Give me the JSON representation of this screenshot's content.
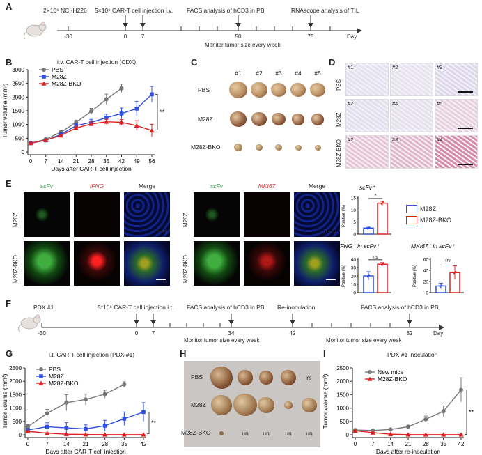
{
  "panels": {
    "A": {
      "letter": "A",
      "cells": "2×10⁶ NCI-H226",
      "injection": "5×10⁶ CAR-T cell injection i.v.",
      "facs": "FACS analysis of hCD3 in PB",
      "rnascope": "RNAscope analysis of TIL",
      "monitor": "Monitor tumor size every week",
      "ticks": [
        "-30",
        "0",
        "7",
        "50",
        "75"
      ],
      "day": "Day"
    },
    "B": {
      "letter": "B",
      "title": "i.v. CAR-T cell injection (CDX)",
      "significance": "**"
    },
    "C": {
      "letter": "C",
      "cols": [
        "#1",
        "#2",
        "#3",
        "#4",
        "#5"
      ],
      "rows": [
        "PBS",
        "M28Z",
        "M28Z-BKO"
      ]
    },
    "D": {
      "letter": "D",
      "rows": [
        "PBS",
        "M28Z",
        "M28Z-BKO"
      ],
      "tiles": [
        [
          "#1",
          "#2",
          "#3"
        ],
        [
          "#2",
          "#4",
          "#5"
        ],
        [
          "#2",
          "#3",
          "#4"
        ]
      ]
    },
    "E": {
      "letter": "E",
      "left_headers": [
        "scFv",
        "IFNG",
        "Merge"
      ],
      "right_headers": [
        "scFv",
        "MKI67",
        "Merge"
      ],
      "rows": [
        "M28Z",
        "M28Z-BKO"
      ],
      "legend": [
        "M28Z",
        "M28Z-BKO"
      ]
    },
    "F": {
      "letter": "F",
      "pdx": "PDX #1",
      "injection": "5*10⁶ CAR-T cell injection i.t.",
      "facs1": "FACS analysis of hCD3 in PB",
      "reinoc": "Re-inoculation",
      "facs2": "FACS analysis of hCD3 in PB",
      "monitor1": "Monitor tumor size every week",
      "monitor2": "Monitor tumor size every week",
      "ticks": [
        "-30",
        "0",
        "7",
        "34",
        "42",
        "82"
      ],
      "day": "Day"
    },
    "G": {
      "letter": "G",
      "title": "i.t. CAR-T cell injection (PDX #1)",
      "significance": "**"
    },
    "H": {
      "letter": "H",
      "rows": [
        "PBS",
        "M28Z",
        "M28Z-BKO"
      ],
      "pbs_last": "re",
      "bko_marks": [
        "un",
        "un",
        "un",
        "un"
      ]
    },
    "I": {
      "letter": "I",
      "title": "PDX #1 inoculation",
      "significance": "**"
    }
  },
  "chart_data": [
    {
      "id": "B",
      "type": "line",
      "ylabel": "Tumor volume (mm³)",
      "xlabel": "Days after CAR-T cell injection",
      "x": [
        0,
        7,
        14,
        21,
        28,
        35,
        42,
        49,
        56
      ],
      "ylim": [
        0,
        3000
      ],
      "yticks": [
        0,
        500,
        1000,
        1500,
        2000,
        2500,
        3000
      ],
      "series": [
        {
          "name": "PBS",
          "color": "#777777",
          "marker": "circle",
          "x": [
            0,
            7,
            14,
            21,
            28,
            35,
            42
          ],
          "values": [
            320,
            460,
            720,
            1080,
            1480,
            1920,
            2320
          ],
          "err": [
            30,
            40,
            60,
            80,
            110,
            190,
            150
          ]
        },
        {
          "name": "M28Z",
          "color": "#2f4fe0",
          "marker": "square",
          "x": [
            0,
            7,
            14,
            21,
            28,
            35,
            42,
            49,
            56
          ],
          "values": [
            320,
            420,
            640,
            960,
            1080,
            1250,
            1400,
            1580,
            2100
          ],
          "err": [
            30,
            40,
            50,
            80,
            110,
            130,
            200,
            260,
            290
          ]
        },
        {
          "name": "M28Z-BKO",
          "color": "#e02020",
          "marker": "triangle",
          "x": [
            0,
            7,
            14,
            21,
            28,
            35,
            42,
            49,
            56
          ],
          "values": [
            320,
            430,
            600,
            870,
            1020,
            1100,
            1080,
            960,
            780
          ],
          "err": [
            30,
            40,
            50,
            70,
            80,
            90,
            100,
            180,
            230
          ]
        }
      ]
    },
    {
      "id": "E-scfv",
      "type": "bar",
      "title": "scFv⁺",
      "ylabel": "Positive (%)",
      "categories": [
        "M28Z",
        "M28Z-BKO"
      ],
      "values": [
        2.5,
        12.8
      ],
      "err": [
        0.3,
        0.8
      ],
      "ylim": [
        0,
        15
      ],
      "yticks": [
        0,
        5,
        10,
        15
      ],
      "significance": "*"
    },
    {
      "id": "E-ifng",
      "type": "bar",
      "title": "IFNG⁺ in scFv⁺",
      "ylabel": "Positive (%)",
      "categories": [
        "M28Z",
        "M28Z-BKO"
      ],
      "values": [
        20,
        34
      ],
      "err": [
        5,
        2
      ],
      "ylim": [
        0,
        40
      ],
      "yticks": [
        0,
        10,
        20,
        30,
        40
      ],
      "significance": "ns"
    },
    {
      "id": "E-mki67",
      "type": "bar",
      "title": "MKI67⁺ in scFv⁺",
      "ylabel": "Positive (%)",
      "categories": [
        "M28Z",
        "M28Z-BKO"
      ],
      "values": [
        12,
        36
      ],
      "err": [
        5,
        12
      ],
      "ylim": [
        0,
        60
      ],
      "yticks": [
        0,
        20,
        40,
        60
      ],
      "significance": "ns"
    },
    {
      "id": "G",
      "type": "line",
      "ylabel": "Tumor volume (mm³)",
      "xlabel": "Days after CAR-T cell injection",
      "x": [
        0,
        7,
        14,
        21,
        28,
        35,
        42
      ],
      "ylim": [
        0,
        2500
      ],
      "yticks": [
        0,
        500,
        1000,
        1500,
        2000,
        2500
      ],
      "series": [
        {
          "name": "PBS",
          "color": "#777777",
          "marker": "circle",
          "x": [
            0,
            7,
            14,
            21,
            28,
            35
          ],
          "values": [
            300,
            800,
            1200,
            1320,
            1520,
            1880
          ],
          "err": [
            80,
            150,
            300,
            200,
            150,
            100
          ]
        },
        {
          "name": "M28Z",
          "color": "#2f4fe0",
          "marker": "square",
          "x": [
            0,
            7,
            14,
            21,
            28,
            35,
            42
          ],
          "values": [
            180,
            300,
            260,
            220,
            340,
            600,
            850
          ],
          "err": [
            50,
            150,
            200,
            150,
            200,
            250,
            350
          ]
        },
        {
          "name": "M28Z-BKO",
          "color": "#e02020",
          "marker": "triangle",
          "x": [
            0,
            7,
            14,
            21,
            28,
            35,
            42
          ],
          "values": [
            130,
            60,
            20,
            10,
            5,
            5,
            5
          ],
          "err": [
            20,
            15,
            10,
            5,
            5,
            5,
            5
          ]
        }
      ]
    },
    {
      "id": "I",
      "type": "line",
      "ylabel": "Tumor volume (mm³)",
      "xlabel": "Days after re-inoculation",
      "x": [
        0,
        7,
        14,
        21,
        28,
        35,
        42
      ],
      "ylim": [
        0,
        2500
      ],
      "yticks": [
        0,
        500,
        1000,
        1500,
        2000,
        2500
      ],
      "series": [
        {
          "name": "New mice",
          "color": "#777777",
          "marker": "circle",
          "x": [
            0,
            7,
            14,
            21,
            28,
            35,
            42
          ],
          "values": [
            180,
            160,
            200,
            300,
            580,
            880,
            1680
          ],
          "err": [
            20,
            20,
            30,
            60,
            120,
            200,
            450
          ]
        },
        {
          "name": "M28Z-BKO",
          "color": "#e02020",
          "marker": "triangle",
          "x": [
            0,
            7,
            14,
            21,
            28,
            35,
            42
          ],
          "values": [
            150,
            80,
            20,
            5,
            5,
            5,
            5
          ],
          "err": [
            20,
            15,
            10,
            5,
            5,
            5,
            5
          ]
        }
      ]
    }
  ]
}
